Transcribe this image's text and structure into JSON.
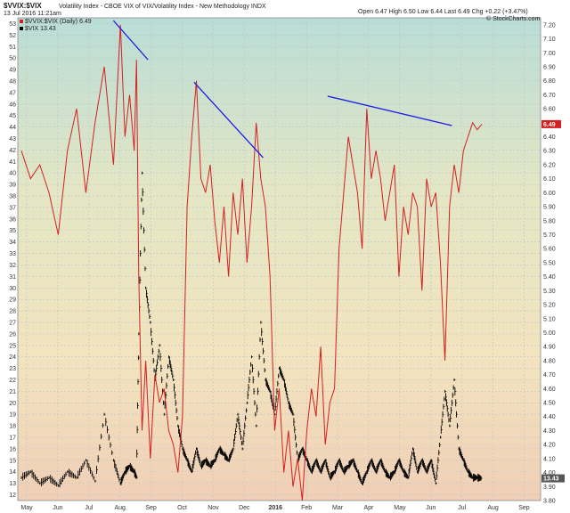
{
  "header": {
    "title": "$VVIX:$VIX",
    "subtitle": "Volatility Index - CBOE VIX of VIX/Volatility Index - New Methodology INDX",
    "date": "13 Jul 2016 11:21am",
    "ohlc": "Open 6.47  High 6.50  Low 6.44  Last 6.49  Chg +0.22 (+3.47%)",
    "watermark": "© StockCharts.com",
    "legend_ratio": "$VVIX:$VIX (Daily) 6.49",
    "legend_vix": "$VIX 13.43"
  },
  "chart_data": {
    "type": "line",
    "title": "$VVIX:$VIX",
    "x_months": [
      "May",
      "Jun",
      "Jul",
      "Aug",
      "Sep",
      "Oct",
      "Nov",
      "Dec",
      "2016",
      "Feb",
      "Mar",
      "Apr",
      "May",
      "Jun",
      "Jul",
      "Aug",
      "Sep"
    ],
    "left_axis": {
      "label": "",
      "ticks": [
        12,
        13,
        14,
        15,
        16,
        17,
        18,
        19,
        20,
        21,
        22,
        23,
        24,
        25,
        26,
        27,
        28,
        29,
        30,
        31,
        32,
        33,
        34,
        35,
        36,
        37,
        38,
        39,
        40,
        41,
        42,
        43,
        44,
        45,
        46,
        47,
        48,
        49,
        50,
        51,
        52,
        53
      ],
      "range": [
        11.5,
        53.5
      ]
    },
    "right_axis": {
      "label": "",
      "ticks": [
        "3.80",
        "3.90",
        "4.00",
        "4.10",
        "4.20",
        "4.30",
        "4.40",
        "4.50",
        "4.60",
        "4.70",
        "4.80",
        "4.90",
        "5.00",
        "5.10",
        "5.20",
        "5.30",
        "5.40",
        "5.50",
        "5.60",
        "5.70",
        "5.80",
        "5.90",
        "6.00",
        "6.10",
        "6.20",
        "6.30",
        "6.40",
        "6.50",
        "6.60",
        "6.70",
        "6.80",
        "6.90",
        "7.00",
        "7.10",
        "7.20"
      ],
      "range": [
        3.8,
        7.25
      ]
    },
    "series": [
      {
        "name": "$VVIX:$VIX (Daily) 6.49",
        "axis": "right",
        "color": "#d42020",
        "x": [
          0,
          0.02,
          0.04,
          0.06,
          0.08,
          0.1,
          0.12,
          0.14,
          0.16,
          0.18,
          0.2,
          0.215,
          0.225,
          0.235,
          0.245,
          0.25,
          0.255,
          0.262,
          0.27,
          0.28,
          0.29,
          0.3,
          0.31,
          0.32,
          0.33,
          0.34,
          0.35,
          0.36,
          0.37,
          0.38,
          0.39,
          0.4,
          0.41,
          0.42,
          0.43,
          0.44,
          0.45,
          0.46,
          0.47,
          0.48,
          0.49,
          0.5,
          0.51,
          0.52,
          0.53,
          0.54,
          0.55,
          0.56,
          0.57,
          0.58,
          0.59,
          0.6,
          0.61,
          0.62,
          0.63,
          0.64,
          0.65,
          0.66,
          0.67,
          0.68,
          0.69,
          0.7,
          0.71,
          0.72,
          0.73,
          0.74,
          0.75,
          0.76,
          0.77,
          0.78,
          0.79,
          0.8,
          0.81,
          0.82,
          0.83,
          0.84,
          0.85,
          0.86,
          0.87,
          0.88,
          0.89,
          0.9,
          0.91,
          0.92,
          0.93,
          0.94,
          0.95,
          0.96,
          0.97,
          0.98,
          0.99,
          1.0
        ],
        "y": [
          6.3,
          6.1,
          6.2,
          6.0,
          5.7,
          6.3,
          6.6,
          6.0,
          6.5,
          6.9,
          6.2,
          7.2,
          6.4,
          6.7,
          6.3,
          6.95,
          5.4,
          4.3,
          4.8,
          4.1,
          4.7,
          4.5,
          4.6,
          4.3,
          4.2,
          4.0,
          4.4,
          5.9,
          6.4,
          6.8,
          6.1,
          6.0,
          6.2,
          5.8,
          5.5,
          5.9,
          5.4,
          6.0,
          5.7,
          6.1,
          5.5,
          5.9,
          6.5,
          6.1,
          5.9,
          5.4,
          4.3,
          4.6,
          4.0,
          4.3,
          3.9,
          4.1,
          3.8,
          4.3,
          4.6,
          4.4,
          4.9,
          4.2,
          4.5,
          4.6,
          5.6,
          6.0,
          6.4,
          6.2,
          6.0,
          5.6,
          6.6,
          6.1,
          6.3,
          6.1,
          5.8,
          6.0,
          6.2,
          5.4,
          5.9,
          5.7,
          6.0,
          5.9,
          5.3,
          6.1,
          5.9,
          6.0,
          5.5,
          4.8,
          5.9,
          6.2,
          6.0,
          6.3,
          6.4,
          6.5,
          6.45,
          6.49
        ]
      },
      {
        "name": "$VIX 13.43",
        "axis": "left",
        "type": "ohlc",
        "color": "#000000",
        "x": [
          0,
          0.02,
          0.04,
          0.06,
          0.08,
          0.1,
          0.12,
          0.14,
          0.16,
          0.18,
          0.2,
          0.215,
          0.225,
          0.235,
          0.245,
          0.25,
          0.255,
          0.262,
          0.27,
          0.28,
          0.29,
          0.3,
          0.31,
          0.32,
          0.33,
          0.34,
          0.35,
          0.36,
          0.37,
          0.38,
          0.39,
          0.4,
          0.41,
          0.42,
          0.43,
          0.44,
          0.45,
          0.46,
          0.47,
          0.48,
          0.49,
          0.5,
          0.51,
          0.52,
          0.53,
          0.54,
          0.55,
          0.56,
          0.57,
          0.58,
          0.59,
          0.6,
          0.61,
          0.62,
          0.63,
          0.64,
          0.65,
          0.66,
          0.67,
          0.68,
          0.69,
          0.7,
          0.71,
          0.72,
          0.73,
          0.74,
          0.75,
          0.76,
          0.77,
          0.78,
          0.79,
          0.8,
          0.81,
          0.82,
          0.83,
          0.84,
          0.85,
          0.86,
          0.87,
          0.88,
          0.89,
          0.9,
          0.91,
          0.92,
          0.93,
          0.94,
          0.95,
          0.96,
          0.97,
          0.98,
          0.99,
          1.0
        ],
        "y": [
          13.5,
          14,
          13,
          13.5,
          12.8,
          14,
          13.5,
          15,
          13.2,
          19,
          15,
          13,
          14,
          14.5,
          14,
          13.5,
          26,
          40,
          30,
          27,
          22,
          25,
          19,
          24,
          22,
          18,
          16,
          15,
          14,
          16,
          14.5,
          15,
          14.5,
          15,
          16,
          15.5,
          15,
          16,
          19,
          16,
          20,
          24,
          18,
          27,
          22,
          21,
          19,
          23,
          22,
          20,
          19,
          15,
          16,
          15,
          14,
          15,
          14,
          15,
          13.5,
          14,
          15,
          14,
          14.5,
          15,
          14,
          13,
          14,
          15,
          14,
          15,
          14,
          13.5,
          14,
          15,
          14,
          13.5,
          16,
          14,
          15,
          14,
          15,
          13,
          17,
          21,
          18,
          22,
          16,
          15,
          14,
          13.5,
          13.5,
          13.43
        ]
      }
    ],
    "trendlines": [
      {
        "color": "#1a1ae6",
        "x": [
          0.2,
          0.275
        ],
        "y": [
          7.23,
          6.95
        ]
      },
      {
        "color": "#1a1ae6",
        "x": [
          0.375,
          0.525
        ],
        "y": [
          6.79,
          6.25
        ]
      },
      {
        "color": "#1a1ae6",
        "x": [
          0.665,
          0.935
        ],
        "y": [
          6.69,
          6.48
        ]
      }
    ],
    "last_badges": [
      {
        "axis": "right",
        "value": "6.49",
        "color": "#d42020"
      },
      {
        "axis": "right",
        "value": "13.43",
        "color": "#555555"
      }
    ],
    "grid": true
  }
}
